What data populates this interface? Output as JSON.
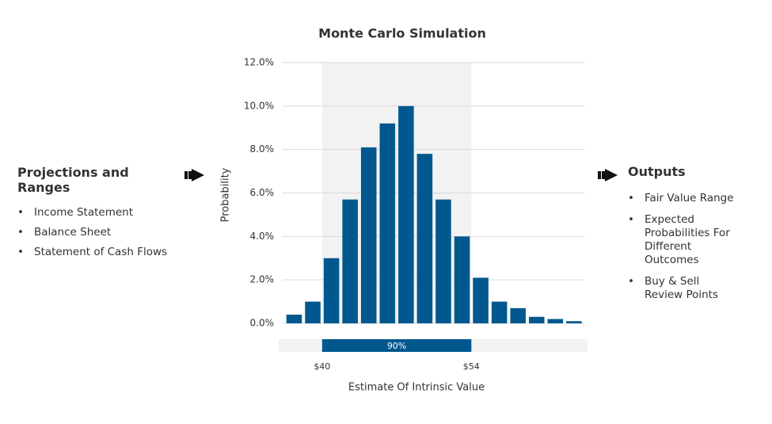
{
  "left_panel": {
    "title": "Projections and Ranges",
    "items": [
      "Income Statement",
      "Balance Sheet",
      "Statement of Cash Flows"
    ]
  },
  "right_panel": {
    "title": "Outputs",
    "items": [
      "Fair Value Range",
      "Expected Probabilities For Different Outcomes",
      "Buy & Sell Review Points"
    ]
  },
  "chart_data": {
    "type": "histogram",
    "title": "Monte Carlo Simulation",
    "x_label": "Estimate Of Intrinsic Value",
    "y_label": "Probability",
    "bins": [
      36.5,
      38.25,
      40,
      41.75,
      43.5,
      45.25,
      47,
      48.75,
      50.5,
      52.25,
      54,
      55.75,
      57.5,
      59.25,
      61,
      62.75,
      64.5
    ],
    "values": [
      0.4,
      1.0,
      3.0,
      5.7,
      8.1,
      9.2,
      10.0,
      7.8,
      5.7,
      4.0,
      2.1,
      1.0,
      0.7,
      0.3,
      0.2,
      0.1
    ],
    "color": "#00588e",
    "xlim": [
      36.3,
      64.6
    ],
    "xticks": [
      {
        "value": 40,
        "label": "$40"
      },
      {
        "value": 54,
        "label": "$54"
      }
    ],
    "ylim": [
      0,
      12
    ],
    "yticks": [
      {
        "value": 0,
        "label": "0.0%"
      },
      {
        "value": 2,
        "label": "2.0%"
      },
      {
        "value": 4,
        "label": "4.0%"
      },
      {
        "value": 6,
        "label": "6.0%"
      },
      {
        "value": 8,
        "label": "8.0%"
      },
      {
        "value": 10,
        "label": "10.0%"
      },
      {
        "value": 12,
        "label": "12.0%"
      }
    ],
    "grid": true,
    "highlight": {
      "start": 40,
      "end": 54,
      "label": "90%"
    }
  }
}
